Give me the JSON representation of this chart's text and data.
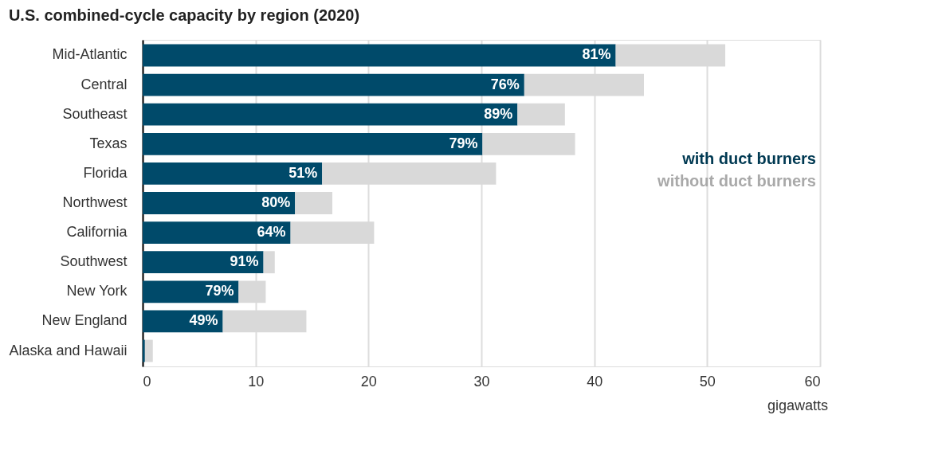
{
  "chart_data": {
    "type": "bar",
    "orientation": "horizontal",
    "stacked": true,
    "title": "U.S. combined-cycle capacity by region (2020)",
    "xlabel": "gigawatts",
    "categories": [
      "Mid-Atlantic",
      "Central",
      "Southeast",
      "Texas",
      "Florida",
      "Northwest",
      "California",
      "Southwest",
      "New York",
      "New England",
      "Alaska and Hawaii"
    ],
    "series": [
      {
        "name": "with duct burners",
        "color": "#004a6a",
        "values": [
          41.9,
          33.8,
          33.2,
          30.1,
          15.9,
          13.5,
          13.1,
          10.7,
          8.5,
          7.1,
          0.2
        ]
      },
      {
        "name": "without duct burners",
        "color": "#d9d9d9",
        "values": [
          9.7,
          10.6,
          4.2,
          8.2,
          15.4,
          3.3,
          7.4,
          1.0,
          2.4,
          7.4,
          0.7
        ]
      }
    ],
    "annotations": [
      {
        "text": "81%",
        "x": 41.9,
        "y": "Mid-Atlantic"
      },
      {
        "text": "76%",
        "x": 33.8,
        "y": "Central"
      },
      {
        "text": "89%",
        "x": 33.2,
        "y": "Southeast"
      },
      {
        "text": "79%",
        "x": 30.1,
        "y": "Texas"
      },
      {
        "text": "51%",
        "x": 15.9,
        "y": "Florida"
      },
      {
        "text": "80%",
        "x": 13.5,
        "y": "Northwest"
      },
      {
        "text": "64%",
        "x": 13.1,
        "y": "California"
      },
      {
        "text": "91%",
        "x": 10.7,
        "y": "Southwest"
      },
      {
        "text": "79%",
        "x": 8.5,
        "y": "New York"
      },
      {
        "text": "49%",
        "x": 7.1,
        "y": "New England"
      }
    ],
    "xlim": [
      0,
      60
    ],
    "xticks": [
      0,
      10,
      20,
      30,
      40,
      50,
      60
    ],
    "grid": "x",
    "legend": "right"
  }
}
